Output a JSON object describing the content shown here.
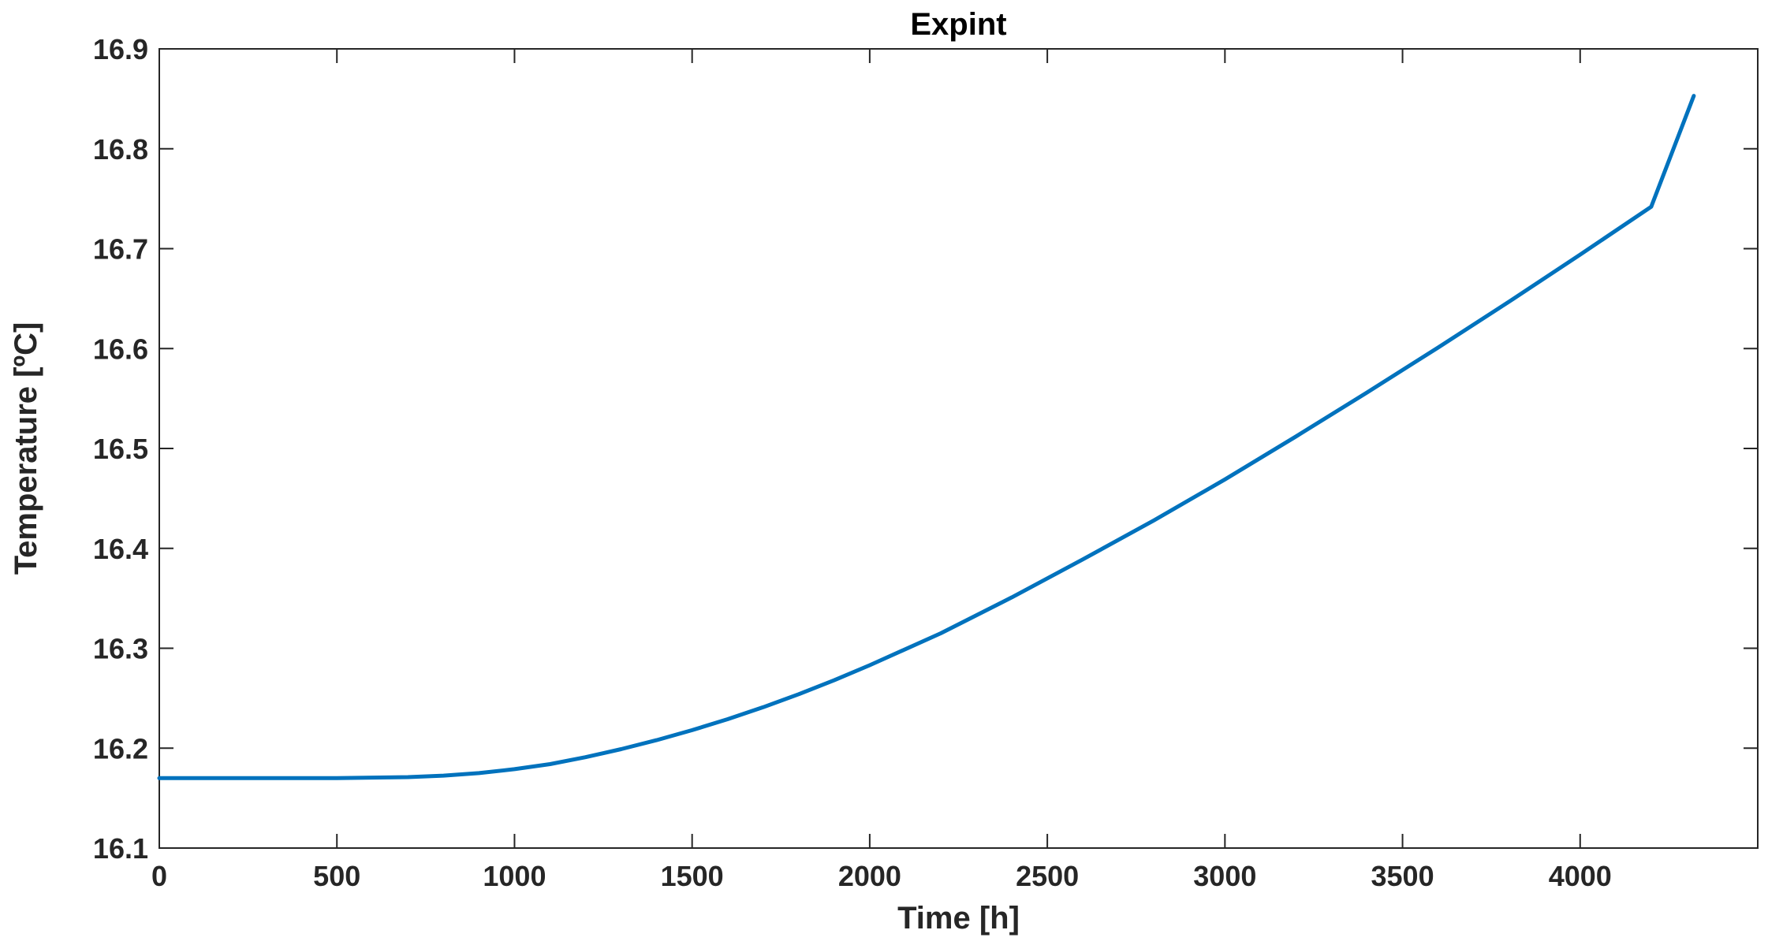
{
  "chart_data": {
    "type": "line",
    "title": "Expint",
    "xlabel": "Time [h]",
    "ylabel": "Temperature [ºC]",
    "xlim": [
      0,
      4500
    ],
    "ylim": [
      16.1,
      16.9
    ],
    "xticks": [
      0,
      500,
      1000,
      1500,
      2000,
      2500,
      3000,
      3500,
      4000
    ],
    "yticks": [
      16.1,
      16.2,
      16.3,
      16.4,
      16.5,
      16.6,
      16.7,
      16.8,
      16.9
    ],
    "grid": false,
    "series": [
      {
        "color": "#0072BD",
        "x": [
          0,
          250,
          500,
          600,
          700,
          800,
          900,
          1000,
          1100,
          1200,
          1300,
          1400,
          1500,
          1600,
          1700,
          1800,
          1900,
          2000,
          2200,
          2400,
          2600,
          2800,
          3000,
          3200,
          3400,
          3600,
          3800,
          4000,
          4200,
          4320
        ],
        "y": [
          16.17,
          16.17,
          16.17,
          16.1705,
          16.171,
          16.1725,
          16.175,
          16.179,
          16.184,
          16.191,
          16.199,
          16.208,
          16.218,
          16.229,
          16.241,
          16.254,
          16.268,
          16.283,
          16.315,
          16.351,
          16.389,
          16.428,
          16.469,
          16.512,
          16.556,
          16.601,
          16.647,
          16.694,
          16.742,
          16.853
        ]
      }
    ]
  }
}
